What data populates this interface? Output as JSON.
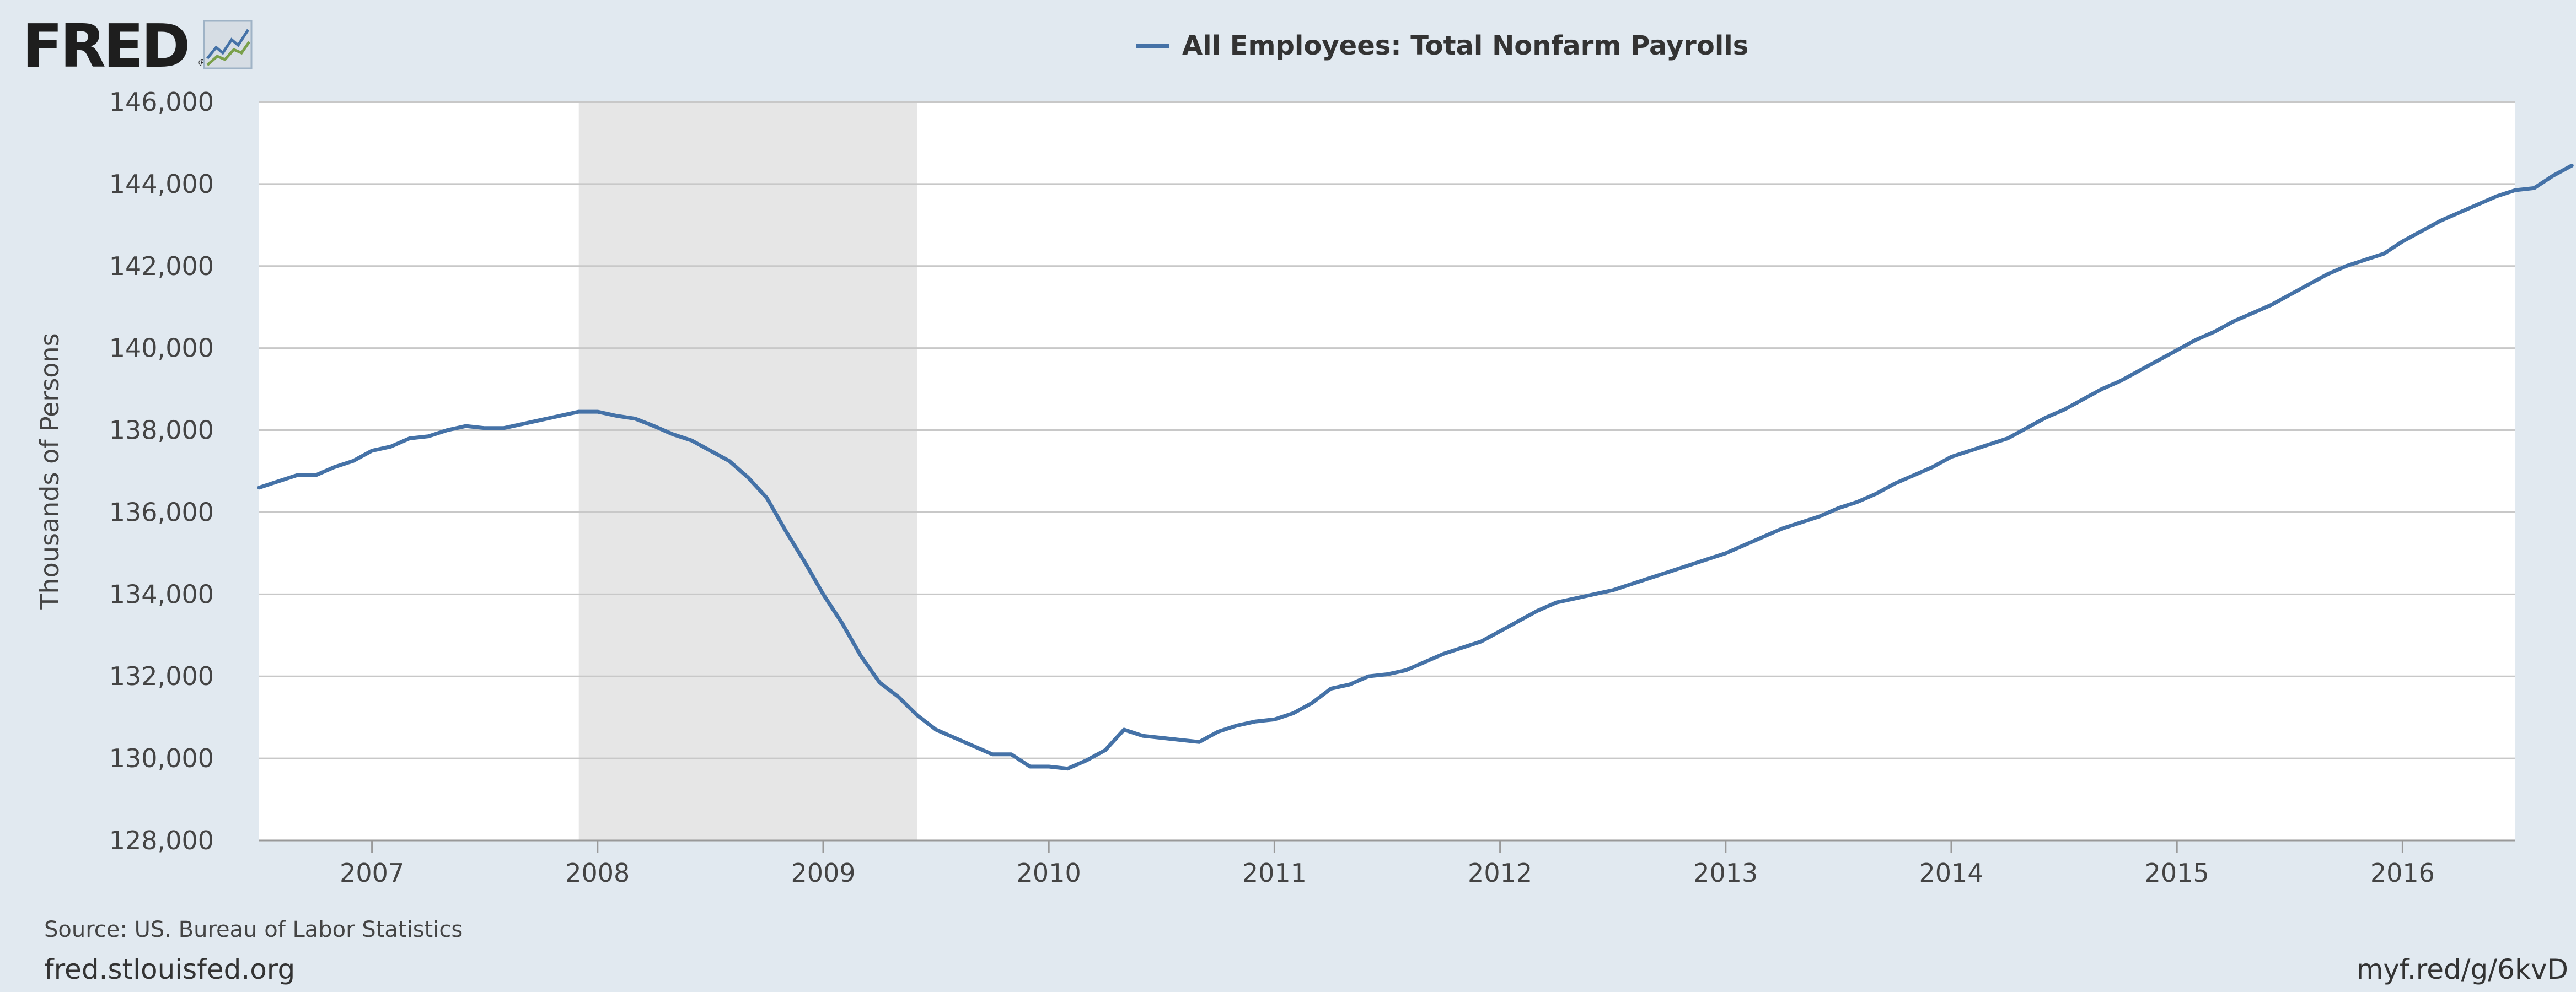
{
  "branding": {
    "logo_text": "FRED",
    "logo_registered": "®",
    "site": "fred.stlouisfed.org",
    "short_url": "myf.red/g/6kvD"
  },
  "source": "Source: US. Bureau of Labor Statistics",
  "colors": {
    "background": "#e1e9f0",
    "plot_background": "#ffffff",
    "line": "#4572a7",
    "recession_shade": "#e6e6e6",
    "grid": "#c8c8c8"
  },
  "chart_data": {
    "type": "line",
    "title": "",
    "xlabel": "",
    "ylabel": "Thousands of Persons",
    "ylim": [
      128000,
      146000
    ],
    "yticks": [
      "128,000",
      "130,000",
      "132,000",
      "134,000",
      "136,000",
      "138,000",
      "140,000",
      "142,000",
      "144,000",
      "146,000"
    ],
    "xticks": [
      "2007",
      "2008",
      "2009",
      "2010",
      "2011",
      "2012",
      "2013",
      "2014",
      "2015",
      "2016"
    ],
    "xlim": [
      "2006-07",
      "2016-07"
    ],
    "grid": true,
    "legend_position": "top-center",
    "recession": {
      "start": "2007-12",
      "end": "2009-06"
    },
    "series": [
      {
        "name": "All Employees: Total Nonfarm Payrolls",
        "start": "2006-07",
        "frequency": "monthly",
        "values": [
          136600,
          136750,
          136900,
          136900,
          137100,
          137250,
          137500,
          137600,
          137800,
          137850,
          138000,
          138100,
          138050,
          138050,
          138150,
          138250,
          138350,
          138450,
          138450,
          138350,
          138280,
          138100,
          137900,
          137750,
          137500,
          137250,
          136850,
          136350,
          135550,
          134800,
          134000,
          133300,
          132500,
          131850,
          131500,
          131050,
          130700,
          130500,
          130300,
          130100,
          130100,
          129800,
          129800,
          129750,
          129950,
          130200,
          130700,
          130550,
          130500,
          130450,
          130400,
          130650,
          130800,
          130900,
          130950,
          131100,
          131350,
          131700,
          131800,
          132000,
          132050,
          132150,
          132350,
          132550,
          132700,
          132850,
          133100,
          133350,
          133600,
          133800,
          133900,
          134000,
          134100,
          134250,
          134400,
          134550,
          134700,
          134850,
          135000,
          135200,
          135400,
          135600,
          135750,
          135900,
          136100,
          136250,
          136450,
          136700,
          136900,
          137100,
          137350,
          137500,
          137650,
          137800,
          138050,
          138300,
          138500,
          138750,
          139000,
          139200,
          139450,
          139700,
          139950,
          140200,
          140400,
          140650,
          140850,
          141050,
          141300,
          141550,
          141800,
          142000,
          142150,
          142300,
          142600,
          142850,
          143100,
          143300,
          143500,
          143700,
          143850,
          143900,
          144200,
          144450
        ]
      }
    ]
  }
}
